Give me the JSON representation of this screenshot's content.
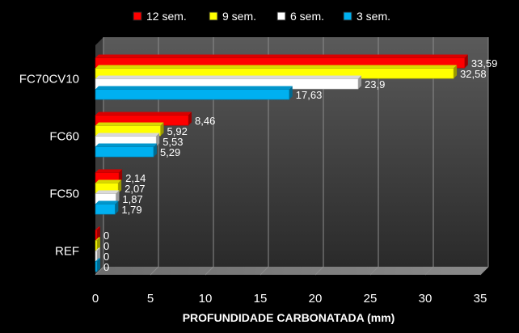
{
  "chart_data": {
    "type": "bar",
    "orientation": "horizontal",
    "title": "",
    "xlabel": "PROFUNDIDADE CARBONATADA (mm)",
    "ylabel": "",
    "xlim": [
      0,
      35
    ],
    "xticks": [
      "0",
      "5",
      "10",
      "15",
      "20",
      "25",
      "30",
      "35"
    ],
    "categories": [
      "FC70CV10",
      "FC60",
      "FC50",
      "REF"
    ],
    "legend_position": "top",
    "grid": true,
    "series": [
      {
        "name": "12 sem.",
        "color": "#ff0000",
        "values": [
          33.59,
          8.46,
          2.14,
          0
        ],
        "labels": [
          "33,59",
          "8,46",
          "2,14",
          "0"
        ]
      },
      {
        "name": "9 sem.",
        "color": "#ffff00",
        "values": [
          32.58,
          5.92,
          2.07,
          0
        ],
        "labels": [
          "32,58",
          "5,92",
          "2,07",
          "0"
        ]
      },
      {
        "name": "6 sem.",
        "color": "#ffffff",
        "values": [
          23.9,
          5.53,
          1.87,
          0
        ],
        "labels": [
          "23,9",
          "5,53",
          "1,87",
          "0"
        ]
      },
      {
        "name": "3 sem.",
        "color": "#00b0f0",
        "values": [
          17.63,
          5.29,
          1.79,
          0
        ],
        "labels": [
          "17,63",
          "5,29",
          "1,79",
          "0"
        ]
      }
    ]
  }
}
